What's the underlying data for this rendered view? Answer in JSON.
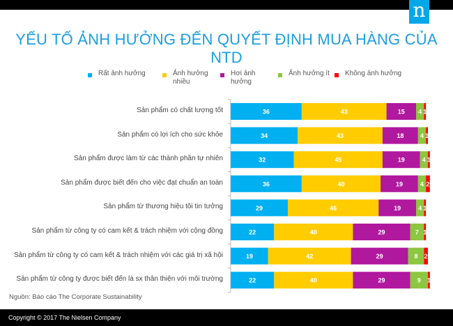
{
  "title": "YẾU TỐ ẢNH HƯỞNG ĐẾN QUYẾT ĐỊNH MUA HÀNG CỦA NTD",
  "logo": {
    "letter": "n",
    "color": "#00a8e8"
  },
  "source": "Nguồn:   Báo cáo The Corporate Sustainability",
  "footer": "Copyright © 2017 The Nielsen Company",
  "chart_data": {
    "type": "bar",
    "orientation": "horizontal",
    "stacked": true,
    "title": "YẾU TỐ ẢNH HƯỞNG ĐẾN QUYẾT ĐỊNH MUA HÀNG CỦA NTD",
    "legend_position": "top",
    "grid": false,
    "xlim": [
      0,
      100
    ],
    "categories": [
      "Sản phẩm có chất lượng tốt",
      "Sản phẩm có lợi ích cho sức khỏe",
      "Sản phẩm được làm từ các thành phần tự nhiên",
      "Sản phẩm được biết đến cho việc đạt chuẩn an toàn",
      "Sản phẩm từ thương hiệu tôi tin tưởng",
      "Sản phẩm từ công ty có cam kết & trách nhiệm với cộng đồng",
      "Sản phẩm từ công ty có cam kết & trách nhiệm với các giá trị xã hội",
      "Sản phẩm từ công ty được biết đến là sx thân thiện với môi trường"
    ],
    "series": [
      {
        "name": "Rất ảnh hưởng",
        "color": "#00b0f0",
        "values": [
          36,
          34,
          32,
          36,
          29,
          22,
          19,
          22
        ]
      },
      {
        "name": "Ảnh hưởng\nnhiều",
        "color": "#ffcc00",
        "values": [
          43,
          43,
          45,
          40,
          46,
          40,
          42,
          40
        ]
      },
      {
        "name": "Hơi ảnh\nhưởng",
        "color": "#b0189e",
        "values": [
          15,
          18,
          19,
          19,
          19,
          29,
          29,
          29
        ]
      },
      {
        "name": "Ảnh hưởng ít",
        "color": "#8dc63f",
        "values": [
          4,
          4,
          4,
          4,
          4,
          7,
          8,
          9
        ]
      },
      {
        "name": "Không ảnh hưởng",
        "color": "#ff0000",
        "values": [
          1,
          1,
          1,
          2,
          1,
          1,
          2,
          1
        ]
      }
    ]
  }
}
